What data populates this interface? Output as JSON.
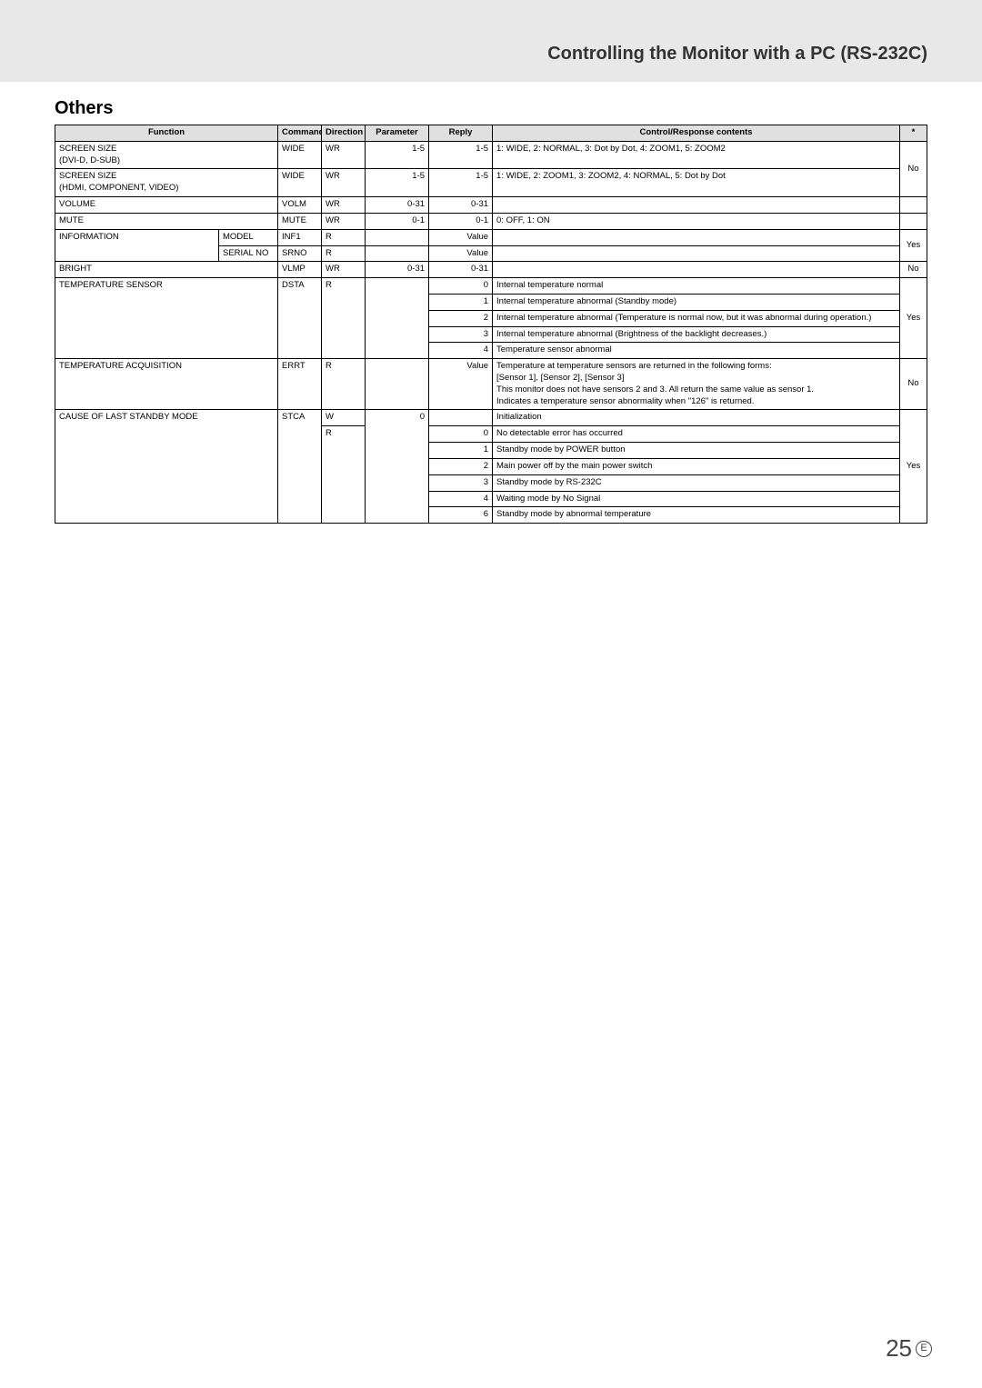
{
  "header": {
    "title": "Controlling the Monitor with a PC (RS-232C)"
  },
  "section": {
    "title": "Others"
  },
  "columns": {
    "function": "Function",
    "command": "Command",
    "direction": "Direction",
    "parameter": "Parameter",
    "reply": "Reply",
    "content": "Control/Response contents",
    "star": "*"
  },
  "rows": {
    "r1": {
      "func": "SCREEN SIZE\n(DVI-D, D-SUB)",
      "cmd": "WIDE",
      "dir": "WR",
      "param": "1-5",
      "reply": "1-5",
      "content": "1: WIDE, 2: NORMAL, 3: Dot by Dot, 4: ZOOM1, 5: ZOOM2"
    },
    "r2": {
      "func": "SCREEN SIZE\n(HDMI, COMPONENT, VIDEO)",
      "cmd": "WIDE",
      "dir": "WR",
      "param": "1-5",
      "reply": "1-5",
      "content": "1: WIDE, 2: ZOOM1, 3: ZOOM2, 4: NORMAL, 5: Dot by Dot",
      "star": "No"
    },
    "r3": {
      "func": "VOLUME",
      "cmd": "VOLM",
      "dir": "WR",
      "param": "0-31",
      "reply": "0-31",
      "content": ""
    },
    "r4": {
      "func": "MUTE",
      "cmd": "MUTE",
      "dir": "WR",
      "param": "0-1",
      "reply": "0-1",
      "content": "0: OFF, 1: ON"
    },
    "r5": {
      "func": "INFORMATION",
      "sub": "MODEL",
      "cmd": "INF1",
      "dir": "R",
      "param": "",
      "reply": "Value",
      "content": ""
    },
    "r6": {
      "sub": "SERIAL NO",
      "cmd": "SRNO",
      "dir": "R",
      "param": "",
      "reply": "Value",
      "content": "",
      "star": "Yes"
    },
    "r7": {
      "func": "BRIGHT",
      "cmd": "VLMP",
      "dir": "WR",
      "param": "0-31",
      "reply": "0-31",
      "content": "",
      "star": "No"
    },
    "r8": {
      "func": "TEMPERATURE SENSOR",
      "cmd": "DSTA",
      "dir": "R",
      "reply": "0",
      "content": "Internal temperature normal"
    },
    "r9": {
      "reply": "1",
      "content": "Internal temperature abnormal (Standby mode)"
    },
    "r10": {
      "reply": "2",
      "content": "Internal temperature abnormal (Temperature is normal now, but it was abnormal during operation.)",
      "star": "Yes"
    },
    "r11": {
      "reply": "3",
      "content": "Internal temperature abnormal (Brightness of the backlight decreases.)"
    },
    "r12": {
      "reply": "4",
      "content": "Temperature sensor abnormal"
    },
    "r13": {
      "func": "TEMPERATURE ACQUISITION",
      "cmd": "ERRT",
      "dir": "R",
      "reply": "Value",
      "content": "Temperature at temperature sensors are returned in the following forms:\n[Sensor 1], [Sensor 2], [Sensor 3]\nThis monitor does not have sensors 2 and 3. All return the same value as sensor 1.\nIndicates a temperature sensor abnormality when \"126\" is returned.",
      "star": "No"
    },
    "r14": {
      "func": "CAUSE OF LAST STANDBY MODE",
      "cmd": "STCA",
      "dir": "W",
      "param": "0",
      "reply": "",
      "content": "Initialization"
    },
    "r15": {
      "dir": "R",
      "reply": "0",
      "content": "No detectable error has occurred"
    },
    "r16": {
      "reply": "1",
      "content": "Standby mode by POWER button"
    },
    "r17": {
      "reply": "2",
      "content": "Main power off by the main power switch",
      "star": "Yes"
    },
    "r18": {
      "reply": "3",
      "content": "Standby mode by RS-232C"
    },
    "r19": {
      "reply": "4",
      "content": "Waiting mode by No Signal"
    },
    "r20": {
      "reply": "6",
      "content": "Standby mode by abnormal temperature"
    }
  },
  "footer": {
    "page": "25",
    "lang": "E"
  }
}
